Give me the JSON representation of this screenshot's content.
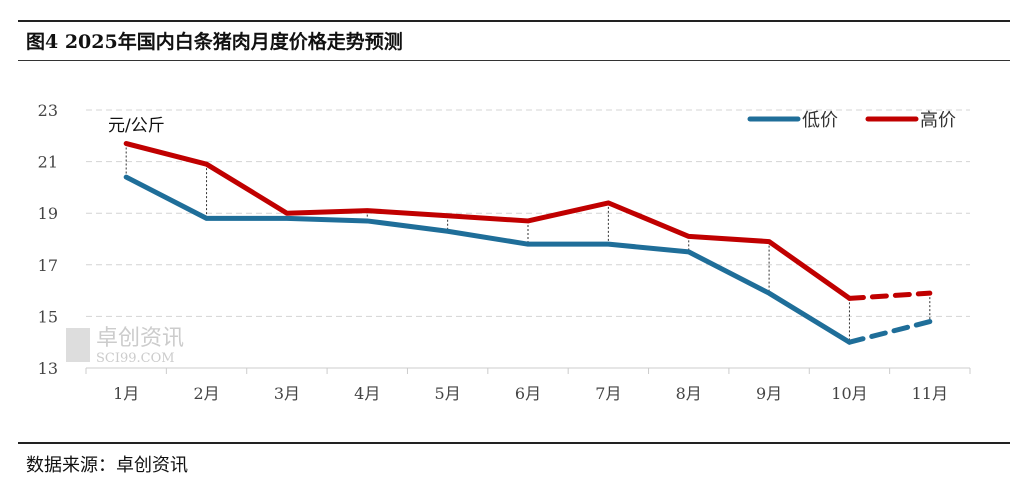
{
  "title": "图4 2025年国内白条猪肉月度价格走势预测",
  "source": "数据来源：卓创资讯",
  "watermark": {
    "cn": "卓创资讯",
    "en": "SCI99.COM"
  },
  "chart_data": {
    "type": "line",
    "title": "图4 2025年国内白条猪肉月度价格走势预测",
    "unit_label": "元/公斤",
    "categories": [
      "1月",
      "2月",
      "3月",
      "4月",
      "5月",
      "6月",
      "7月",
      "8月",
      "9月",
      "10月",
      "11月"
    ],
    "ylim": [
      13,
      23
    ],
    "yticks": [
      13,
      15,
      17,
      19,
      21,
      23
    ],
    "grid": true,
    "legend_position": "top-right",
    "forecast_from_index": 9,
    "series": [
      {
        "name": "低价",
        "color": "#1f6e99",
        "values": [
          20.4,
          18.8,
          18.8,
          18.7,
          18.3,
          17.8,
          17.8,
          17.5,
          15.9,
          14.0,
          14.8
        ]
      },
      {
        "name": "高价",
        "color": "#c00000",
        "values": [
          21.7,
          20.9,
          19.0,
          19.1,
          18.9,
          18.7,
          19.4,
          18.1,
          17.9,
          15.7,
          15.9
        ]
      }
    ]
  }
}
